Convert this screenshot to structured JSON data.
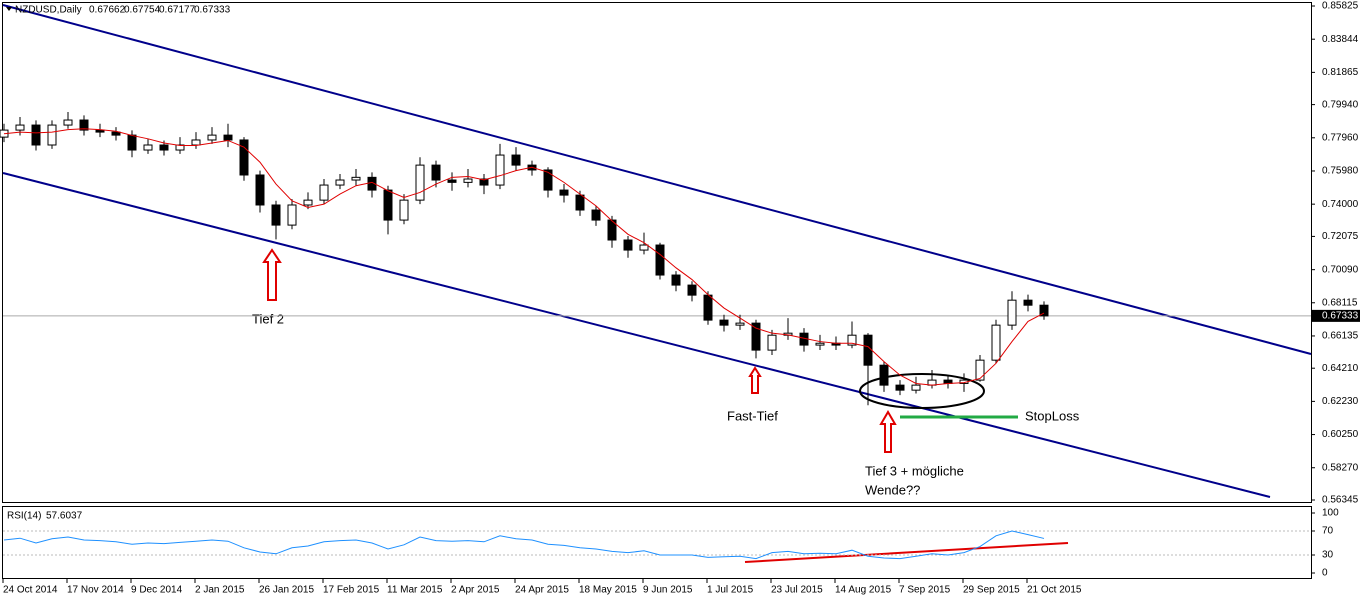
{
  "chart_data": {
    "type": "candlestick",
    "symbol": "NZDUSD,Daily",
    "header_values": [
      0.67662,
      0.67754,
      0.67177,
      0.67333
    ],
    "categories": [
      "24 Oct 2014",
      null,
      null,
      null,
      "17 Nov 2014",
      null,
      null,
      null,
      "9 Dec 2014",
      null,
      null,
      null,
      "2 Jan 2015",
      null,
      null,
      null,
      "26 Jan 2015",
      null,
      null,
      null,
      "17 Feb 2015",
      null,
      null,
      null,
      "11 Mar 2015",
      null,
      null,
      null,
      "2 Apr 2015",
      null,
      null,
      null,
      "24 Apr 2015",
      null,
      null,
      null,
      "18 May 2015",
      null,
      null,
      null,
      "9 Jun 2015",
      null,
      null,
      null,
      "1 Jul 2015",
      null,
      null,
      null,
      "23 Jul 2015",
      null,
      null,
      null,
      "14 Aug 2015",
      null,
      null,
      null,
      "7 Sep 2015",
      null,
      null,
      null,
      "29 Sep 2015",
      null,
      null,
      null,
      "21 Oct 2015",
      null
    ],
    "ohlc": [
      [
        0.78,
        0.788,
        0.777,
        0.7842
      ],
      [
        0.7842,
        0.792,
        0.781,
        0.7872
      ],
      [
        0.7872,
        0.79,
        0.772,
        0.7753
      ],
      [
        0.7753,
        0.79,
        0.773,
        0.7872
      ],
      [
        0.7872,
        0.795,
        0.785,
        0.7902
      ],
      [
        0.7902,
        0.793,
        0.781,
        0.7842
      ],
      [
        0.7842,
        0.788,
        0.78,
        0.783
      ],
      [
        0.783,
        0.786,
        0.778,
        0.7812
      ],
      [
        0.7812,
        0.784,
        0.768,
        0.7723
      ],
      [
        0.7723,
        0.779,
        0.77,
        0.7753
      ],
      [
        0.7753,
        0.778,
        0.769,
        0.7723
      ],
      [
        0.7723,
        0.78,
        0.77,
        0.7753
      ],
      [
        0.7753,
        0.783,
        0.773,
        0.7783
      ],
      [
        0.7783,
        0.786,
        0.776,
        0.7812
      ],
      [
        0.7812,
        0.788,
        0.774,
        0.7783
      ],
      [
        0.7783,
        0.78,
        0.754,
        0.7574
      ],
      [
        0.7574,
        0.76,
        0.735,
        0.7395
      ],
      [
        0.7395,
        0.742,
        0.719,
        0.7275
      ],
      [
        0.7275,
        0.743,
        0.725,
        0.7395
      ],
      [
        0.7395,
        0.747,
        0.737,
        0.7424
      ],
      [
        0.7424,
        0.755,
        0.74,
        0.7514
      ],
      [
        0.7514,
        0.758,
        0.749,
        0.7544
      ],
      [
        0.7544,
        0.761,
        0.751,
        0.756
      ],
      [
        0.756,
        0.759,
        0.744,
        0.7484
      ],
      [
        0.7484,
        0.751,
        0.722,
        0.7305
      ],
      [
        0.7305,
        0.746,
        0.728,
        0.7424
      ],
      [
        0.7424,
        0.768,
        0.74,
        0.7633
      ],
      [
        0.7633,
        0.766,
        0.75,
        0.7544
      ],
      [
        0.7544,
        0.759,
        0.748,
        0.753
      ],
      [
        0.753,
        0.761,
        0.75,
        0.755
      ],
      [
        0.755,
        0.758,
        0.746,
        0.7514
      ],
      [
        0.7514,
        0.776,
        0.749,
        0.7693
      ],
      [
        0.7693,
        0.774,
        0.76,
        0.7633
      ],
      [
        0.7633,
        0.766,
        0.757,
        0.7604
      ],
      [
        0.7604,
        0.762,
        0.744,
        0.7484
      ],
      [
        0.7484,
        0.752,
        0.741,
        0.7454
      ],
      [
        0.7454,
        0.748,
        0.733,
        0.7365
      ],
      [
        0.7365,
        0.739,
        0.727,
        0.7305
      ],
      [
        0.7305,
        0.733,
        0.714,
        0.7186
      ],
      [
        0.7186,
        0.721,
        0.708,
        0.7126
      ],
      [
        0.7126,
        0.723,
        0.71,
        0.7156
      ],
      [
        0.7156,
        0.717,
        0.695,
        0.6977
      ],
      [
        0.6977,
        0.7,
        0.688,
        0.6917
      ],
      [
        0.6917,
        0.694,
        0.682,
        0.6857
      ],
      [
        0.6857,
        0.688,
        0.668,
        0.6708
      ],
      [
        0.6708,
        0.674,
        0.664,
        0.6678
      ],
      [
        0.6678,
        0.674,
        0.665,
        0.669
      ],
      [
        0.669,
        0.671,
        0.648,
        0.6529
      ],
      [
        0.6529,
        0.665,
        0.65,
        0.6618
      ],
      [
        0.6618,
        0.672,
        0.659,
        0.663
      ],
      [
        0.663,
        0.666,
        0.652,
        0.6559
      ],
      [
        0.6559,
        0.662,
        0.653,
        0.657
      ],
      [
        0.657,
        0.661,
        0.653,
        0.6559
      ],
      [
        0.6559,
        0.67,
        0.654,
        0.6618
      ],
      [
        0.6618,
        0.663,
        0.62,
        0.6439
      ],
      [
        0.6439,
        0.646,
        0.628,
        0.632
      ],
      [
        0.632,
        0.635,
        0.626,
        0.629
      ],
      [
        0.629,
        0.637,
        0.627,
        0.632
      ],
      [
        0.632,
        0.641,
        0.63,
        0.635
      ],
      [
        0.635,
        0.638,
        0.63,
        0.633
      ],
      [
        0.633,
        0.639,
        0.628,
        0.635
      ],
      [
        0.635,
        0.65,
        0.634,
        0.6469
      ],
      [
        0.6469,
        0.671,
        0.645,
        0.6678
      ],
      [
        0.6678,
        0.688,
        0.665,
        0.6827
      ],
      [
        0.6827,
        0.686,
        0.676,
        0.6797
      ],
      [
        0.6797,
        0.682,
        0.671,
        0.6733
      ]
    ],
    "ma": {
      "color": "#e00000",
      "values": [
        0.782,
        0.783,
        0.7825,
        0.783,
        0.7845,
        0.785,
        0.7845,
        0.7835,
        0.781,
        0.779,
        0.7765,
        0.775,
        0.775,
        0.7765,
        0.778,
        0.774,
        0.765,
        0.752,
        0.742,
        0.738,
        0.74,
        0.746,
        0.751,
        0.753,
        0.748,
        0.744,
        0.747,
        0.752,
        0.756,
        0.7565,
        0.7545,
        0.757,
        0.76,
        0.762,
        0.759,
        0.753,
        0.746,
        0.739,
        0.73,
        0.722,
        0.717,
        0.71,
        0.702,
        0.695,
        0.686,
        0.678,
        0.672,
        0.666,
        0.663,
        0.662,
        0.66,
        0.658,
        0.657,
        0.657,
        0.655,
        0.646,
        0.638,
        0.633,
        0.632,
        0.633,
        0.6335,
        0.636,
        0.645,
        0.658,
        0.67,
        0.675
      ]
    },
    "ylim": [
      0.56345,
      0.85825
    ],
    "yticks": [
      0.85825,
      0.83844,
      0.81865,
      {
        "value": 0.7994,
        "label": "0.79940"
      },
      {
        "value": 0.7796,
        "label": "0.77960"
      },
      {
        "value": 0.7598,
        "label": "0.75980"
      },
      {
        "value": 0.74,
        "label": "0.74000"
      },
      0.72075,
      {
        "value": 0.7009,
        "label": "0.70090"
      },
      0.68115,
      0.66135,
      {
        "value": 0.6421,
        "label": "0.64210"
      },
      {
        "value": 0.6223,
        "label": "0.62230"
      },
      {
        "value": 0.6025,
        "label": "0.60250"
      },
      {
        "value": 0.5827,
        "label": "0.58270"
      },
      0.56345
    ],
    "rsi": {
      "label": "RSI(14)",
      "current": 57.6037,
      "color": "#1e90ff",
      "ylim": [
        0,
        100
      ],
      "yticks": [
        100,
        70,
        30,
        0
      ],
      "values": [
        55,
        58,
        50,
        57,
        60,
        55,
        54,
        52,
        48,
        50,
        49,
        51,
        53,
        55,
        53,
        42,
        35,
        32,
        42,
        45,
        52,
        54,
        55,
        50,
        40,
        47,
        60,
        54,
        53,
        54,
        52,
        62,
        57,
        55,
        48,
        46,
        42,
        40,
        36,
        34,
        37,
        30,
        30,
        30,
        26,
        27,
        28,
        24,
        34,
        36,
        32,
        33,
        32,
        38,
        28,
        25,
        24,
        28,
        32,
        30,
        34,
        44,
        62,
        70,
        64,
        57.6
      ]
    },
    "annotations": {
      "tief2": "Tief 2",
      "fast_tief": "Fast-Tief",
      "tief3": [
        "Tief 3 + mögliche",
        "Wende??"
      ],
      "stoploss": "StopLoss"
    }
  }
}
